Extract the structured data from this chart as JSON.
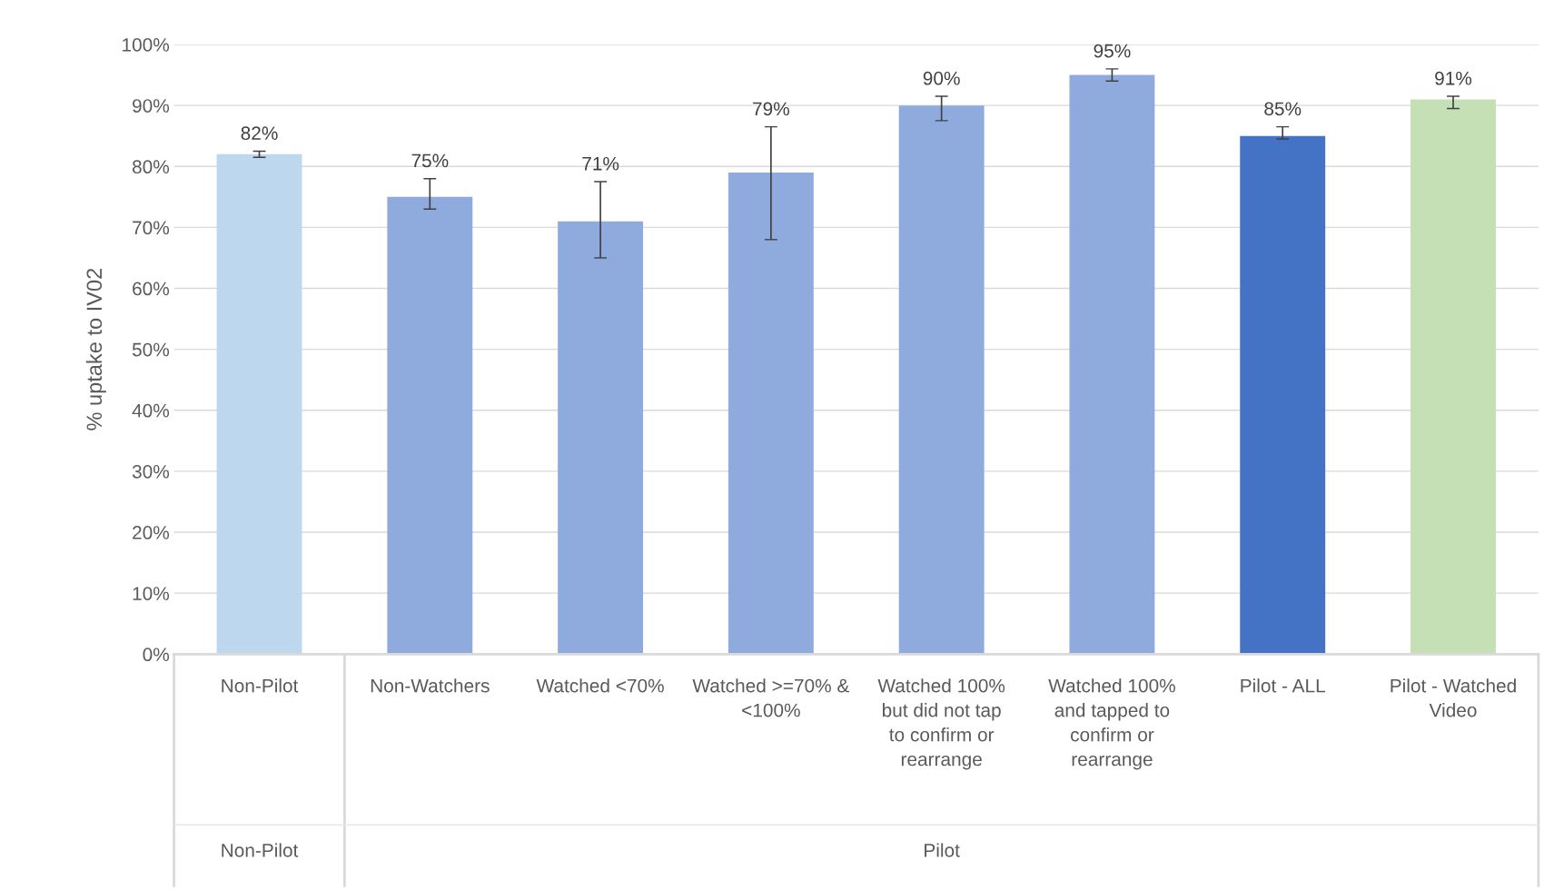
{
  "chart_data": {
    "type": "bar",
    "categories": [
      "Non-Pilot",
      "Non-Watchers",
      "Watched <70%",
      "Watched >=70% & <100%",
      "Watched 100% but did not tap to confirm or rearrange",
      "Watched 100% and tapped to confirm or rearrange",
      "Pilot - ALL",
      "Pilot - Watched Video"
    ],
    "values": [
      82,
      75,
      71,
      79,
      90,
      95,
      85,
      91
    ],
    "value_labels": [
      "82%",
      "75%",
      "71%",
      "79%",
      "90%",
      "95%",
      "85%",
      "91%"
    ],
    "colors": [
      "#bdd7ee",
      "#8faadc",
      "#8faadc",
      "#8faadc",
      "#8faadc",
      "#8faadc",
      "#4472c4",
      "#c5e0b4"
    ],
    "errors": [
      [
        81.5,
        82.5
      ],
      [
        73,
        78
      ],
      [
        65,
        77.5
      ],
      [
        68,
        86.5
      ],
      [
        87.5,
        91.5
      ],
      [
        94,
        96
      ],
      [
        84.5,
        86.5
      ],
      [
        89.5,
        91.5
      ]
    ],
    "ylabel": "% uptake to IV02",
    "ylim": [
      0,
      100
    ],
    "yticks": [
      {
        "value": 0,
        "label": "0%"
      },
      {
        "value": 10,
        "label": "10%"
      },
      {
        "value": 20,
        "label": "20%"
      },
      {
        "value": 30,
        "label": "30%"
      },
      {
        "value": 40,
        "label": "40%"
      },
      {
        "value": 50,
        "label": "50%"
      },
      {
        "value": 60,
        "label": "60%"
      },
      {
        "value": 70,
        "label": "70%"
      },
      {
        "value": 80,
        "label": "80%"
      },
      {
        "value": 90,
        "label": "90%"
      },
      {
        "value": 100,
        "label": "100%"
      }
    ],
    "grid": "y",
    "annotations": [
      "Non-Pilot",
      "Pilot"
    ]
  }
}
